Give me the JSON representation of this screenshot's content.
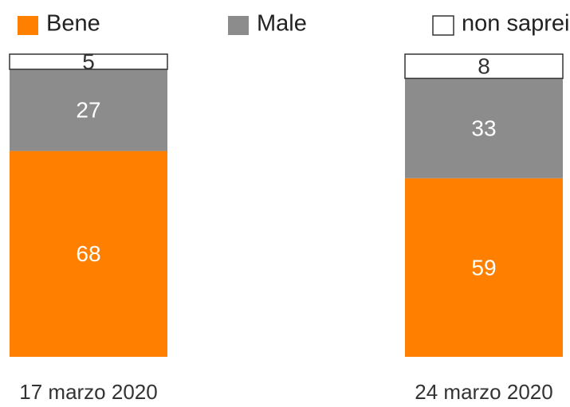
{
  "chart_data": {
    "type": "stacked_bar",
    "categories": [
      "17 marzo 2020",
      "24 marzo 2020"
    ],
    "series": [
      {
        "name": "Bene",
        "color": "#ff7f00",
        "values": [
          68,
          59
        ]
      },
      {
        "name": "Male",
        "color": "#8c8c8c",
        "values": [
          27,
          33
        ]
      },
      {
        "name": "non saprei",
        "color": "#ffffff",
        "values": [
          5,
          8
        ]
      }
    ],
    "ylim": [
      0,
      100
    ]
  }
}
